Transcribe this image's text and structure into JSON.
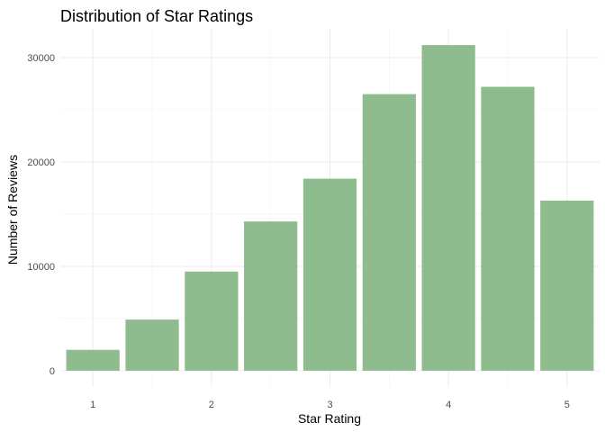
{
  "chart_data": {
    "type": "bar",
    "title": "Distribution of Star Ratings",
    "xlabel": "Star Rating",
    "ylabel": "Number of Reviews",
    "bars": [
      {
        "x": 1.0,
        "value": 2000
      },
      {
        "x": 1.5,
        "value": 4900
      },
      {
        "x": 2.0,
        "value": 9500
      },
      {
        "x": 2.5,
        "value": 14300
      },
      {
        "x": 3.0,
        "value": 18400
      },
      {
        "x": 3.5,
        "value": 26500
      },
      {
        "x": 4.0,
        "value": 31200
      },
      {
        "x": 4.5,
        "value": 27200
      },
      {
        "x": 5.0,
        "value": 16300
      }
    ],
    "bar_width": 0.45,
    "xlim": [
      0.725,
      5.275
    ],
    "ylim": [
      -1560,
      32760
    ],
    "x_ticks": [
      "1",
      "2",
      "3",
      "4",
      "5"
    ],
    "y_ticks": [
      "0",
      "10000",
      "20000",
      "30000"
    ],
    "grid": true,
    "bar_color": "#8fbc8f",
    "legend": "none"
  }
}
